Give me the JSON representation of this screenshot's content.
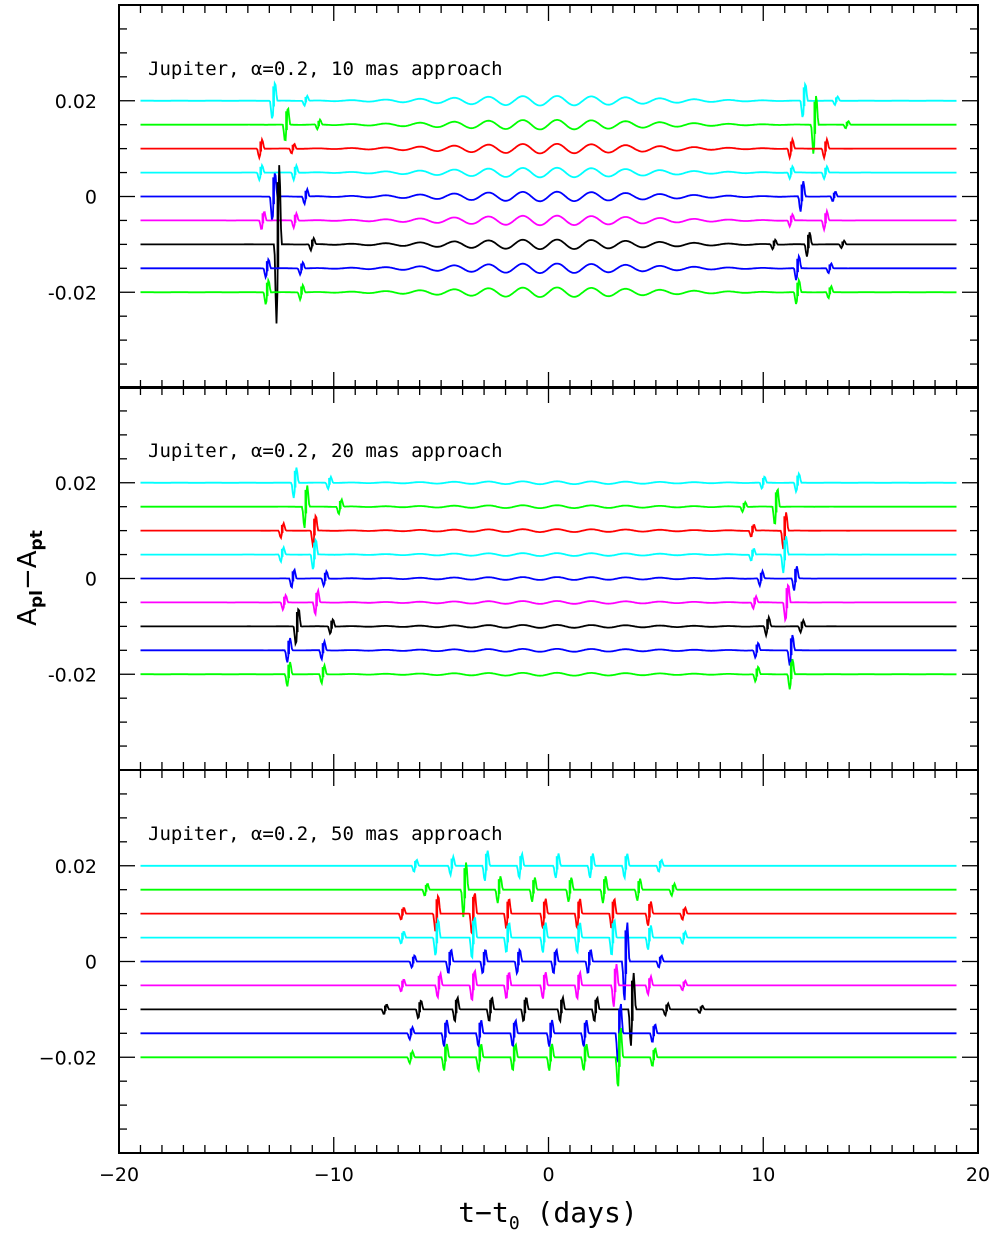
{
  "figure": {
    "ylabel_main": "A",
    "ylabel_sub1": "pl",
    "ylabel_minus": "−",
    "ylabel_sub2": "pt",
    "xlabel_main": "t−t",
    "xlabel_sub": "0",
    "xlabel_tail": " (days)"
  },
  "chart_data": [
    {
      "type": "line",
      "title": "Jupiter, α=0.2, 10 mas approach",
      "xlim": [
        -20,
        20
      ],
      "ylim": [
        -0.04,
        0.04
      ],
      "ytick_labels": [
        {
          "v": 0.02,
          "label": "0.02"
        },
        {
          "v": 0,
          "label": "0"
        },
        {
          "v": -0.02,
          "label": "-0.02"
        }
      ],
      "traces": [
        {
          "offset": 0.02,
          "color": "#00ffff",
          "spikes": [
            {
              "x": -12.8,
              "h": 0.003
            },
            {
              "x": -11.3,
              "h": 0.0008
            },
            {
              "x": 11.9,
              "h": 0.0028
            },
            {
              "x": 13.4,
              "h": 0.0007
            }
          ]
        },
        {
          "offset": 0.015,
          "color": "#00ff00",
          "spikes": [
            {
              "x": -12.2,
              "h": 0.0028
            },
            {
              "x": -10.7,
              "h": 0.0008
            },
            {
              "x": 12.4,
              "h": 0.0048
            },
            {
              "x": 13.9,
              "h": 0.0006
            }
          ]
        },
        {
          "offset": 0.01,
          "color": "#ff0000",
          "spikes": [
            {
              "x": -13.4,
              "h": 0.0015
            },
            {
              "x": -11.9,
              "h": 0.0008
            },
            {
              "x": 11.3,
              "h": 0.0015
            },
            {
              "x": 12.9,
              "h": 0.0015
            }
          ]
        },
        {
          "offset": 0.005,
          "color": "#00ffff",
          "spikes": [
            {
              "x": -13.4,
              "h": 0.0012
            },
            {
              "x": -11.8,
              "h": 0.0012
            },
            {
              "x": 11.3,
              "h": 0.001
            },
            {
              "x": 12.9,
              "h": 0.001
            }
          ]
        },
        {
          "offset": 0.0,
          "color": "#0000ff",
          "spikes": [
            {
              "x": -12.8,
              "h": 0.004
            },
            {
              "x": -11.3,
              "h": 0.0012
            },
            {
              "x": 11.8,
              "h": 0.0025
            },
            {
              "x": 13.3,
              "h": 0.0008
            }
          ]
        },
        {
          "offset": -0.005,
          "color": "#ff00ff",
          "spikes": [
            {
              "x": -13.3,
              "h": 0.0015
            },
            {
              "x": -11.8,
              "h": 0.0012
            },
            {
              "x": 11.3,
              "h": 0.001
            },
            {
              "x": 12.9,
              "h": 0.0015
            }
          ]
        },
        {
          "offset": -0.01,
          "color": "#000000",
          "spikes": [
            {
              "x": -12.6,
              "h": 0.013
            },
            {
              "x": -11.0,
              "h": 0.001
            },
            {
              "x": 10.5,
              "h": 0.0008
            },
            {
              "x": 12.1,
              "h": 0.002
            },
            {
              "x": 13.7,
              "h": 0.0006
            }
          ]
        },
        {
          "offset": -0.015,
          "color": "#0000ff",
          "spikes": [
            {
              "x": -13.1,
              "h": 0.0015
            },
            {
              "x": -11.5,
              "h": 0.001
            },
            {
              "x": 11.6,
              "h": 0.002
            },
            {
              "x": 13.1,
              "h": 0.0008
            }
          ]
        },
        {
          "offset": -0.02,
          "color": "#00ff00",
          "spikes": [
            {
              "x": -13.1,
              "h": 0.002
            },
            {
              "x": -11.5,
              "h": 0.0012
            },
            {
              "x": 11.6,
              "h": 0.002
            },
            {
              "x": 13.1,
              "h": 0.001
            }
          ]
        }
      ],
      "wiggle_halfwidth": 10,
      "wiggle_amplitude": 0.001
    },
    {
      "type": "line",
      "title": "Jupiter, α=0.2, 20 mas approach",
      "xlim": [
        -20,
        20
      ],
      "ylim": [
        -0.04,
        0.04
      ],
      "ytick_labels": [
        {
          "v": 0.02,
          "label": "0.02"
        },
        {
          "v": 0,
          "label": "0"
        },
        {
          "v": -0.02,
          "label": "-0.02"
        }
      ],
      "traces": [
        {
          "offset": 0.02,
          "color": "#00ffff",
          "spikes": [
            {
              "x": -11.8,
              "h": 0.0025
            },
            {
              "x": -10.2,
              "h": 0.001
            },
            {
              "x": 10.0,
              "h": 0.001
            },
            {
              "x": 11.6,
              "h": 0.0015
            }
          ]
        },
        {
          "offset": 0.015,
          "color": "#00ff00",
          "spikes": [
            {
              "x": -11.3,
              "h": 0.0035
            },
            {
              "x": -9.7,
              "h": 0.0012
            },
            {
              "x": 9.1,
              "h": 0.0008
            },
            {
              "x": 10.6,
              "h": 0.003
            }
          ]
        },
        {
          "offset": 0.01,
          "color": "#ff0000",
          "spikes": [
            {
              "x": -12.4,
              "h": 0.0012
            },
            {
              "x": -10.9,
              "h": 0.0025
            },
            {
              "x": 9.5,
              "h": 0.001
            },
            {
              "x": 11.0,
              "h": 0.003
            }
          ]
        },
        {
          "offset": 0.005,
          "color": "#00ffff",
          "spikes": [
            {
              "x": -12.4,
              "h": 0.0012
            },
            {
              "x": -10.9,
              "h": 0.0025
            },
            {
              "x": 9.5,
              "h": 0.001
            },
            {
              "x": 11.0,
              "h": 0.003
            }
          ]
        },
        {
          "offset": 0.0,
          "color": "#0000ff",
          "spikes": [
            {
              "x": -11.9,
              "h": 0.0015
            },
            {
              "x": -10.4,
              "h": 0.0012
            },
            {
              "x": 9.9,
              "h": 0.0012
            },
            {
              "x": 11.5,
              "h": 0.002
            }
          ]
        },
        {
          "offset": -0.005,
          "color": "#ff00ff",
          "spikes": [
            {
              "x": -12.3,
              "h": 0.0012
            },
            {
              "x": -10.8,
              "h": 0.002
            },
            {
              "x": 9.6,
              "h": 0.001
            },
            {
              "x": 11.1,
              "h": 0.003
            }
          ]
        },
        {
          "offset": -0.01,
          "color": "#000000",
          "spikes": [
            {
              "x": -11.7,
              "h": 0.003
            },
            {
              "x": -10.1,
              "h": 0.0012
            },
            {
              "x": 10.2,
              "h": 0.0015
            },
            {
              "x": 11.8,
              "h": 0.001
            }
          ]
        },
        {
          "offset": -0.015,
          "color": "#0000ff",
          "spikes": [
            {
              "x": -12.1,
              "h": 0.002
            },
            {
              "x": -10.5,
              "h": 0.0015
            },
            {
              "x": 9.7,
              "h": 0.0012
            },
            {
              "x": 11.3,
              "h": 0.0025
            }
          ]
        },
        {
          "offset": -0.02,
          "color": "#00ff00",
          "spikes": [
            {
              "x": -12.1,
              "h": 0.002
            },
            {
              "x": -10.5,
              "h": 0.0015
            },
            {
              "x": 9.7,
              "h": 0.0012
            },
            {
              "x": 11.3,
              "h": 0.0025
            }
          ]
        }
      ],
      "wiggle_halfwidth": 11,
      "wiggle_amplitude": 0.0003
    },
    {
      "type": "line",
      "title": "Jupiter, α=0.2, 50 mas approach",
      "xlim": [
        -20,
        20
      ],
      "ylim": [
        -0.04,
        0.04
      ],
      "ytick_labels": [
        {
          "v": 0.02,
          "label": "0.02"
        },
        {
          "v": 0,
          "label": "0"
        },
        {
          "v": -0.02,
          "label": "−0.02"
        }
      ],
      "traces": [
        {
          "offset": 0.02,
          "color": "#00ffff",
          "spikes": [
            {
              "x": -6.2,
              "h": 0.001
            },
            {
              "x": -4.5,
              "h": 0.0015
            },
            {
              "x": -2.9,
              "h": 0.0025
            },
            {
              "x": -1.3,
              "h": 0.002
            },
            {
              "x": 0.4,
              "h": 0.002
            },
            {
              "x": 2.0,
              "h": 0.002
            },
            {
              "x": 3.6,
              "h": 0.002
            },
            {
              "x": 5.2,
              "h": 0.001
            }
          ]
        },
        {
          "offset": 0.015,
          "color": "#00ff00",
          "spikes": [
            {
              "x": -5.7,
              "h": 0.001
            },
            {
              "x": -3.9,
              "h": 0.0045
            },
            {
              "x": -2.3,
              "h": 0.0022
            },
            {
              "x": -0.7,
              "h": 0.002
            },
            {
              "x": 1.0,
              "h": 0.002
            },
            {
              "x": 2.6,
              "h": 0.0022
            },
            {
              "x": 4.2,
              "h": 0.0018
            },
            {
              "x": 5.8,
              "h": 0.001
            }
          ]
        },
        {
          "offset": 0.01,
          "color": "#ff0000",
          "spikes": [
            {
              "x": -6.8,
              "h": 0.001
            },
            {
              "x": -5.2,
              "h": 0.003
            },
            {
              "x": -3.5,
              "h": 0.0035
            },
            {
              "x": -1.9,
              "h": 0.0025
            },
            {
              "x": -0.2,
              "h": 0.0025
            },
            {
              "x": 1.4,
              "h": 0.0025
            },
            {
              "x": 3.0,
              "h": 0.0025
            },
            {
              "x": 4.7,
              "h": 0.002
            },
            {
              "x": 6.3,
              "h": 0.001
            }
          ]
        },
        {
          "offset": 0.005,
          "color": "#00ffff",
          "spikes": [
            {
              "x": -6.8,
              "h": 0.001
            },
            {
              "x": -5.2,
              "h": 0.003
            },
            {
              "x": -3.5,
              "h": 0.0035
            },
            {
              "x": -1.9,
              "h": 0.0025
            },
            {
              "x": -0.2,
              "h": 0.0025
            },
            {
              "x": 1.4,
              "h": 0.0025
            },
            {
              "x": 3.0,
              "h": 0.003
            },
            {
              "x": 4.7,
              "h": 0.002
            },
            {
              "x": 6.3,
              "h": 0.001
            }
          ]
        },
        {
          "offset": 0.0,
          "color": "#0000ff",
          "spikes": [
            {
              "x": -6.3,
              "h": 0.001
            },
            {
              "x": -4.6,
              "h": 0.002
            },
            {
              "x": -3.0,
              "h": 0.002
            },
            {
              "x": -1.4,
              "h": 0.002
            },
            {
              "x": 0.3,
              "h": 0.002
            },
            {
              "x": 1.9,
              "h": 0.002
            },
            {
              "x": 3.6,
              "h": 0.0065
            },
            {
              "x": 5.2,
              "h": 0.001
            }
          ]
        },
        {
          "offset": -0.005,
          "color": "#ff00ff",
          "spikes": [
            {
              "x": -6.8,
              "h": 0.001
            },
            {
              "x": -5.1,
              "h": 0.002
            },
            {
              "x": -3.5,
              "h": 0.0025
            },
            {
              "x": -1.9,
              "h": 0.0022
            },
            {
              "x": -0.2,
              "h": 0.0022
            },
            {
              "x": 1.4,
              "h": 0.0022
            },
            {
              "x": 3.1,
              "h": 0.0035
            },
            {
              "x": 4.7,
              "h": 0.0015
            },
            {
              "x": 6.3,
              "h": 0.0008
            }
          ]
        },
        {
          "offset": -0.01,
          "color": "#000000",
          "spikes": [
            {
              "x": -7.6,
              "h": 0.0008
            },
            {
              "x": -6.0,
              "h": 0.0015
            },
            {
              "x": -4.3,
              "h": 0.002
            },
            {
              "x": -2.7,
              "h": 0.002
            },
            {
              "x": -1.1,
              "h": 0.002
            },
            {
              "x": 0.6,
              "h": 0.002
            },
            {
              "x": 2.2,
              "h": 0.002
            },
            {
              "x": 3.9,
              "h": 0.006
            },
            {
              "x": 5.5,
              "h": 0.001
            },
            {
              "x": 7.1,
              "h": 0.0006
            }
          ]
        },
        {
          "offset": -0.015,
          "color": "#0000ff",
          "spikes": [
            {
              "x": -6.4,
              "h": 0.001
            },
            {
              "x": -4.8,
              "h": 0.0022
            },
            {
              "x": -3.2,
              "h": 0.0022
            },
            {
              "x": -1.6,
              "h": 0.0022
            },
            {
              "x": 0.1,
              "h": 0.0022
            },
            {
              "x": 1.7,
              "h": 0.0022
            },
            {
              "x": 3.3,
              "h": 0.005
            },
            {
              "x": 4.9,
              "h": 0.0015
            }
          ]
        },
        {
          "offset": -0.02,
          "color": "#00ff00",
          "spikes": [
            {
              "x": -6.4,
              "h": 0.001
            },
            {
              "x": -4.8,
              "h": 0.0022
            },
            {
              "x": -3.2,
              "h": 0.0022
            },
            {
              "x": -1.6,
              "h": 0.0022
            },
            {
              "x": 0.1,
              "h": 0.0022
            },
            {
              "x": 1.7,
              "h": 0.0022
            },
            {
              "x": 3.3,
              "h": 0.005
            },
            {
              "x": 4.9,
              "h": 0.0015
            }
          ]
        }
      ],
      "wiggle_halfwidth": 0,
      "wiggle_amplitude": 0
    }
  ],
  "xaxis": {
    "ticks": [
      -20,
      -10,
      0,
      10,
      20
    ],
    "labels": [
      "−20",
      "−10",
      "0",
      "10",
      "20"
    ]
  }
}
